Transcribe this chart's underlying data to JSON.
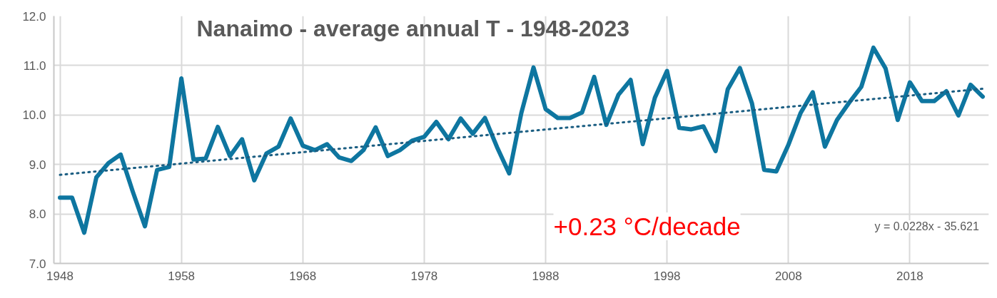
{
  "chart_data": {
    "type": "line",
    "title": "Nanaimo - average annual T - 1948-2023",
    "x": [
      1948,
      1949,
      1950,
      1951,
      1952,
      1953,
      1954,
      1955,
      1956,
      1957,
      1958,
      1959,
      1960,
      1961,
      1962,
      1963,
      1964,
      1965,
      1966,
      1967,
      1968,
      1969,
      1970,
      1971,
      1972,
      1973,
      1974,
      1975,
      1976,
      1977,
      1978,
      1979,
      1980,
      1981,
      1982,
      1983,
      1984,
      1985,
      1986,
      1987,
      1988,
      1989,
      1990,
      1991,
      1992,
      1993,
      1994,
      1995,
      1996,
      1997,
      1998,
      1999,
      2000,
      2001,
      2002,
      2003,
      2004,
      2005,
      2006,
      2007,
      2008,
      2009,
      2010,
      2011,
      2012,
      2013,
      2014,
      2015,
      2016,
      2017,
      2018,
      2019,
      2020,
      2021,
      2022,
      2023,
      2024
    ],
    "series": [
      {
        "color": "#0e76a0",
        "values": [
          8.33,
          8.33,
          7.62,
          8.74,
          9.03,
          9.2,
          8.45,
          7.75,
          8.89,
          8.95,
          10.74,
          9.1,
          9.12,
          9.76,
          9.17,
          9.51,
          8.68,
          9.22,
          9.36,
          9.93,
          9.38,
          9.29,
          9.41,
          9.14,
          9.07,
          9.29,
          9.75,
          9.17,
          9.29,
          9.48,
          9.56,
          9.86,
          9.51,
          9.93,
          9.62,
          9.94,
          9.35,
          8.82,
          10.04,
          10.96,
          10.12,
          9.94,
          9.94,
          10.05,
          10.77,
          9.8,
          10.41,
          10.71,
          9.41,
          10.35,
          10.89,
          9.74,
          9.71,
          9.77,
          9.27,
          10.52,
          10.95,
          10.23,
          8.89,
          8.86,
          9.4,
          10.04,
          10.46,
          9.36,
          9.9,
          10.25,
          10.57,
          11.36,
          10.94,
          9.9,
          10.66,
          10.28,
          10.28,
          10.48,
          9.99,
          10.61,
          10.37
        ]
      },
      {
        "type": "line",
        "color": "#1b5e82",
        "line_style": "dotted",
        "x": [
          1948,
          2024
        ],
        "values": [
          8.79,
          10.53
        ]
      }
    ],
    "xlim": [
      1947.5,
      2024.5
    ],
    "xticks": [
      1948,
      1958,
      1968,
      1978,
      1988,
      1998,
      2008,
      2018
    ],
    "ylim": [
      7,
      12
    ],
    "yticks": [
      {
        "value": 7,
        "label": "7.0"
      },
      {
        "value": 8,
        "label": "8.0"
      },
      {
        "value": 9,
        "label": "9.0"
      },
      {
        "value": 10,
        "label": "10.0"
      },
      {
        "value": 11,
        "label": "11.0"
      },
      {
        "value": 12,
        "label": "12.0"
      }
    ],
    "grid": true,
    "marker": "none",
    "line_style": "solid",
    "annotations": [
      "+0.23 °C/decade",
      "y = 0.0228x - 35.621"
    ]
  }
}
